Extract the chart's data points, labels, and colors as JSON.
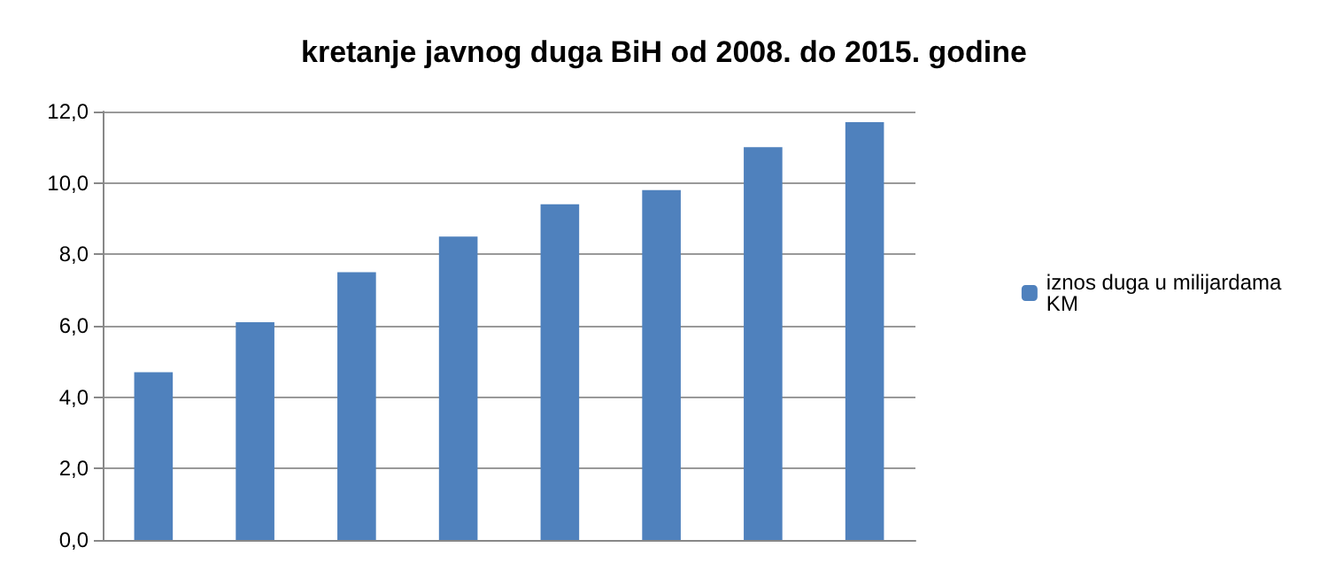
{
  "chart_data": {
    "type": "bar",
    "title": "kretanje javnog duga BiH od 2008. do 2015. godine",
    "categories": [
      null,
      null,
      null,
      null,
      null,
      null,
      null,
      null
    ],
    "series": [
      {
        "name": "iznos duga u milijardama KM",
        "color": "#4f81bd",
        "values": [
          4.7,
          6.1,
          7.5,
          8.5,
          9.4,
          9.8,
          11.0,
          11.7
        ]
      }
    ],
    "ylim": [
      0,
      12
    ],
    "yticks": [
      {
        "value": 0,
        "label": "0,0"
      },
      {
        "value": 2,
        "label": "2,0"
      },
      {
        "value": 4,
        "label": "4,0"
      },
      {
        "value": 6,
        "label": "6,0"
      },
      {
        "value": 8,
        "label": "8,0"
      },
      {
        "value": 10,
        "label": "10,0"
      },
      {
        "value": 12,
        "label": "12,0"
      }
    ],
    "grid": "y",
    "legend": "right"
  }
}
